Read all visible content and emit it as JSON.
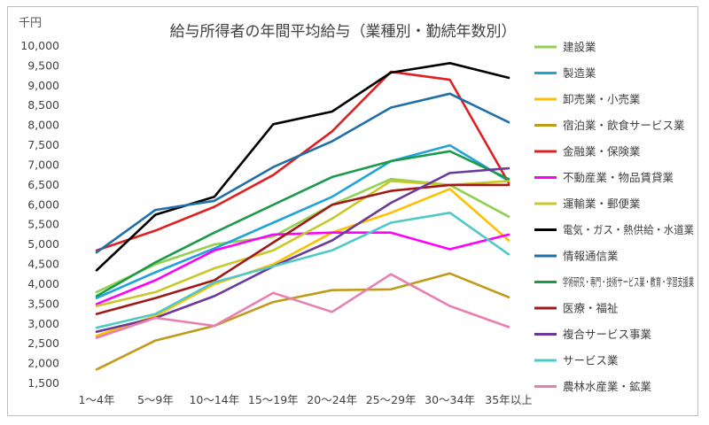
{
  "chart_data": {
    "type": "line",
    "title": "給与所得者の年間平均給与（業種別・勤続年数別）",
    "ylabel": "千円",
    "xlabel": "",
    "ylim": [
      1500,
      10000
    ],
    "ytick_step": 500,
    "grid": false,
    "legend_position": "right",
    "categories": [
      "1～4年",
      "5～9年",
      "10～14年",
      "15～19年",
      "20～24年",
      "25～29年",
      "30～34年",
      "35年以上"
    ],
    "series": [
      {
        "name": "建設業",
        "color": "#92d050",
        "values": [
          3800,
          4500,
          5000,
          5200,
          6000,
          6650,
          6500,
          5700
        ]
      },
      {
        "name": "製造業",
        "color": "#1fa3d9",
        "values": [
          3650,
          4300,
          4900,
          5550,
          6200,
          7100,
          7500,
          6600
        ]
      },
      {
        "name": "卸売業・小売業",
        "color": "#ffc000",
        "values": [
          2700,
          3200,
          4000,
          4500,
          5300,
          5800,
          6400,
          5100
        ]
      },
      {
        "name": "宿泊業・飲食サービス業",
        "color": "#c09a18",
        "values": [
          1850,
          2580,
          2950,
          3550,
          3850,
          3870,
          4270,
          3670
        ]
      },
      {
        "name": "金融業・保険業",
        "color": "#e02020",
        "values": [
          4850,
          5350,
          5950,
          6750,
          7850,
          9350,
          9150,
          6550
        ]
      },
      {
        "name": "不動産業・物品賃貸業",
        "color": "#ff00ff",
        "values": [
          3500,
          4100,
          4850,
          5250,
          5300,
          5300,
          4880,
          5250
        ]
      },
      {
        "name": "運輸業・郵便業",
        "color": "#c8c82a",
        "values": [
          3450,
          3800,
          4400,
          4850,
          5650,
          6600,
          6500,
          6600
        ]
      },
      {
        "name": "電気・ガス・熱供給・水道業",
        "color": "#000000",
        "values": [
          4350,
          5750,
          6200,
          8030,
          8350,
          9330,
          9570,
          9200
        ]
      },
      {
        "name": "情報通信業",
        "color": "#1f6fa8",
        "values": [
          4800,
          5870,
          6100,
          6950,
          7600,
          8450,
          8800,
          8080
        ]
      },
      {
        "name": "学術研究・専門・技術サービス業・教育・学習支援業",
        "color": "#1a9a4a",
        "values": [
          3700,
          4550,
          5300,
          6000,
          6700,
          7100,
          7350,
          6650
        ]
      },
      {
        "name": "医療・福祉",
        "color": "#a01818",
        "values": [
          3250,
          3650,
          4100,
          5050,
          6000,
          6350,
          6500,
          6500
        ]
      },
      {
        "name": "複合サービス事業",
        "color": "#6a3a9a",
        "values": [
          2800,
          3150,
          3700,
          4450,
          5100,
          6050,
          6800,
          6920
        ]
      },
      {
        "name": "サービス業",
        "color": "#4fc8c8",
        "values": [
          2900,
          3250,
          4050,
          4450,
          4850,
          5550,
          5800,
          4750
        ]
      },
      {
        "name": "農林水産業・鉱業",
        "color": "#e87fb0",
        "values": [
          2650,
          3150,
          2950,
          3780,
          3300,
          4250,
          3450,
          2920
        ]
      }
    ]
  }
}
